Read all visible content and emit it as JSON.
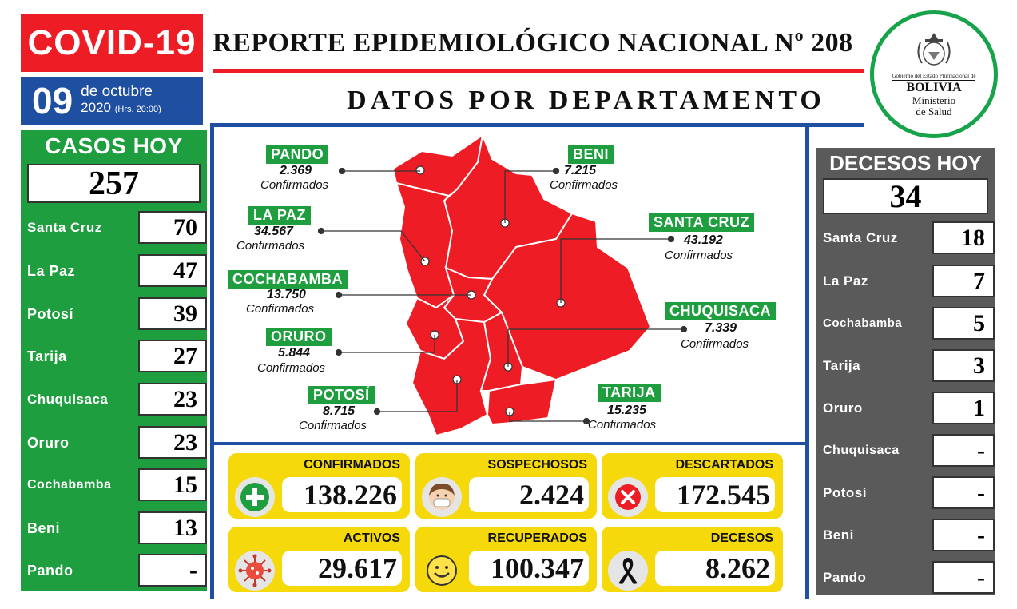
{
  "header": {
    "brand": "COVID-19",
    "report_title": "REPORTE EPIDEMIOLÓGICO NACIONAL Nº 208",
    "date_day": "09",
    "date_month": "de octubre",
    "date_year": "2020",
    "date_hour": "(Hrs. 20:00)",
    "section_title": "DATOS POR DEPARTAMENTO"
  },
  "logo": {
    "government": "Gobierno del Estado Plurinacional de",
    "country": "BOLIVIA",
    "ministry_line1": "Ministerio",
    "ministry_line2": "de Salud"
  },
  "casos_hoy": {
    "title": "CASOS HOY",
    "total": "257",
    "rows": [
      {
        "label": "Santa Cruz",
        "value": "70"
      },
      {
        "label": "La Paz",
        "value": "47"
      },
      {
        "label": "Potosí",
        "value": "39"
      },
      {
        "label": "Tarija",
        "value": "27"
      },
      {
        "label": "Chuquisaca",
        "value": "23"
      },
      {
        "label": "Oruro",
        "value": "23"
      },
      {
        "label": "Cochabamba",
        "value": "15"
      },
      {
        "label": "Beni",
        "value": "13"
      },
      {
        "label": "Pando",
        "value": "-"
      }
    ]
  },
  "decesos_hoy": {
    "title": "DECESOS HOY",
    "total": "34",
    "rows": [
      {
        "label": "Santa Cruz",
        "value": "18"
      },
      {
        "label": "La Paz",
        "value": "7"
      },
      {
        "label": "Cochabamba",
        "value": "5"
      },
      {
        "label": "Tarija",
        "value": "3"
      },
      {
        "label": "Oruro",
        "value": "1"
      },
      {
        "label": "Chuquisaca",
        "value": "-"
      },
      {
        "label": "Potosí",
        "value": "-"
      },
      {
        "label": "Beni",
        "value": "-"
      },
      {
        "label": "Pando",
        "value": "-"
      }
    ]
  },
  "map": {
    "confirm_word": "Confirmados",
    "departments": [
      {
        "name": "PANDO",
        "value": "2.369"
      },
      {
        "name": "BENI",
        "value": "7.215"
      },
      {
        "name": "LA PAZ",
        "value": "34.567"
      },
      {
        "name": "SANTA CRUZ",
        "value": "43.192"
      },
      {
        "name": "COCHABAMBA",
        "value": "13.750"
      },
      {
        "name": "CHUQUISACA",
        "value": "7.339"
      },
      {
        "name": "ORURO",
        "value": "5.844"
      },
      {
        "name": "POTOSÍ",
        "value": "8.715"
      },
      {
        "name": "TARIJA",
        "value": "15.235"
      }
    ],
    "map_color": "#ee1c24"
  },
  "stats": [
    {
      "label": "CONFIRMADOS",
      "value": "138.226",
      "icon": "plus-icon"
    },
    {
      "label": "SOSPECHOSOS",
      "value": "2.424",
      "icon": "masked-face-icon"
    },
    {
      "label": "DESCARTADOS",
      "value": "172.545",
      "icon": "x-circle-icon"
    },
    {
      "label": "ACTIVOS",
      "value": "29.617",
      "icon": "virus-icon"
    },
    {
      "label": "RECUPERADOS",
      "value": "100.347",
      "icon": "smile-icon"
    },
    {
      "label": "DECESOS",
      "value": "8.262",
      "icon": "mourning-ribbon-icon"
    }
  ],
  "colors": {
    "red": "#ee1c24",
    "blue": "#1f4fa0",
    "green": "#1e9e3e",
    "gray": "#5a5a5a",
    "yellow": "#f5d90a"
  }
}
